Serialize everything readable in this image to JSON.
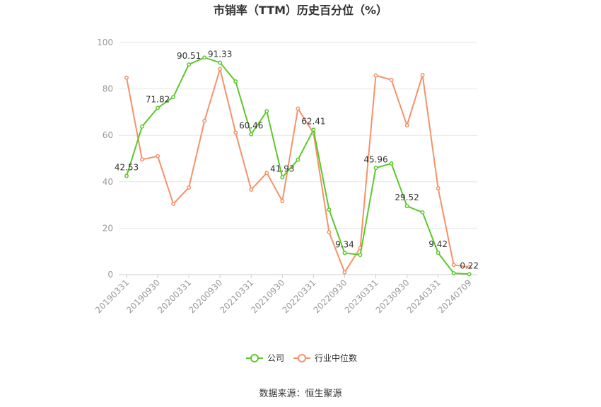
{
  "chart_data": {
    "type": "line",
    "title": "市销率（TTM）历史百分位（%）",
    "source": "数据来源：恒生聚源",
    "x": [
      "20190331",
      "20190630",
      "20190930",
      "20191231",
      "20200331",
      "20200630",
      "20200930",
      "20201231",
      "20210331",
      "20210630",
      "20210930",
      "20211231",
      "20220331",
      "20220630",
      "20220930",
      "20221231",
      "20230331",
      "20230630",
      "20230930",
      "20231231",
      "20240331",
      "20240630",
      "20240709"
    ],
    "x_tick_labels": [
      "20190331",
      "20190930",
      "20200331",
      "20200930",
      "20210331",
      "20210930",
      "20220331",
      "20220930",
      "20230331",
      "20230930",
      "20240331",
      "20240709"
    ],
    "ylim": [
      0,
      100
    ],
    "y_ticks": [
      "0",
      "20",
      "40",
      "60",
      "80",
      "100"
    ],
    "grid": true,
    "legend_position": "bottom",
    "series": [
      {
        "name": "公司",
        "color": "#5cc82a",
        "values": [
          42.53,
          63.8,
          71.82,
          76.5,
          90.51,
          93.5,
          91.33,
          83.2,
          60.46,
          70.4,
          41.93,
          49.5,
          62.41,
          28.0,
          9.34,
          8.5,
          45.96,
          47.9,
          29.52,
          26.8,
          9.42,
          0.6,
          0.22
        ],
        "labels": [
          "42.53",
          "",
          "71.82",
          "",
          "90.51",
          "",
          "91.33",
          "",
          "60.46",
          "",
          "41.93",
          "",
          "62.41",
          "",
          "9.34",
          "",
          "45.96",
          "",
          "29.52",
          "",
          "9.42",
          "",
          "0.22"
        ]
      },
      {
        "name": "行业中位数",
        "color": "#f4926a",
        "values": [
          84.8,
          49.6,
          51.0,
          30.5,
          37.5,
          66.2,
          88.6,
          61.2,
          36.6,
          43.8,
          31.7,
          71.5,
          61.0,
          18.3,
          1.0,
          11.5,
          85.8,
          83.9,
          64.3,
          86.0,
          37.2,
          4.2,
          3.3
        ]
      }
    ]
  }
}
